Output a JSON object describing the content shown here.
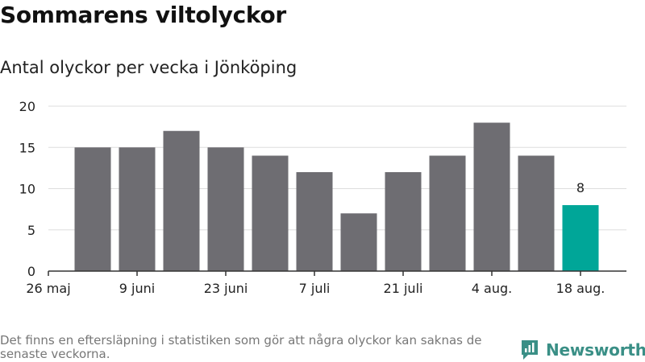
{
  "title": "Sommarens viltolyckor",
  "subtitle": "Antal olyckor per vecka i Jönköping",
  "footnote": "Det finns en eftersläpning i statistiken som gör att några olyckor kan saknas de senaste veckorna.",
  "brand": "Newsworthy",
  "colors": {
    "bar": "#6e6d72",
    "highlight": "#00a698",
    "grid": "#dddddd",
    "axis": "#333333",
    "brand": "#3a8f86"
  },
  "chart_data": {
    "type": "bar",
    "title": "Sommarens viltolyckor",
    "subtitle": "Antal olyckor per vecka i Jönköping",
    "ylim": [
      0,
      20
    ],
    "yticks": [
      0,
      5,
      10,
      15,
      20
    ],
    "xticks": [
      "26 maj",
      "9 juni",
      "23 juni",
      "7 juli",
      "21 juli",
      "4 aug.",
      "18 aug."
    ],
    "values": [
      15,
      15,
      17,
      15,
      14,
      12,
      7,
      12,
      14,
      18,
      14,
      8
    ],
    "highlight_index": 11,
    "data_labels": [
      {
        "index": 11,
        "text": "8"
      }
    ],
    "grid": true,
    "legend": "none"
  }
}
